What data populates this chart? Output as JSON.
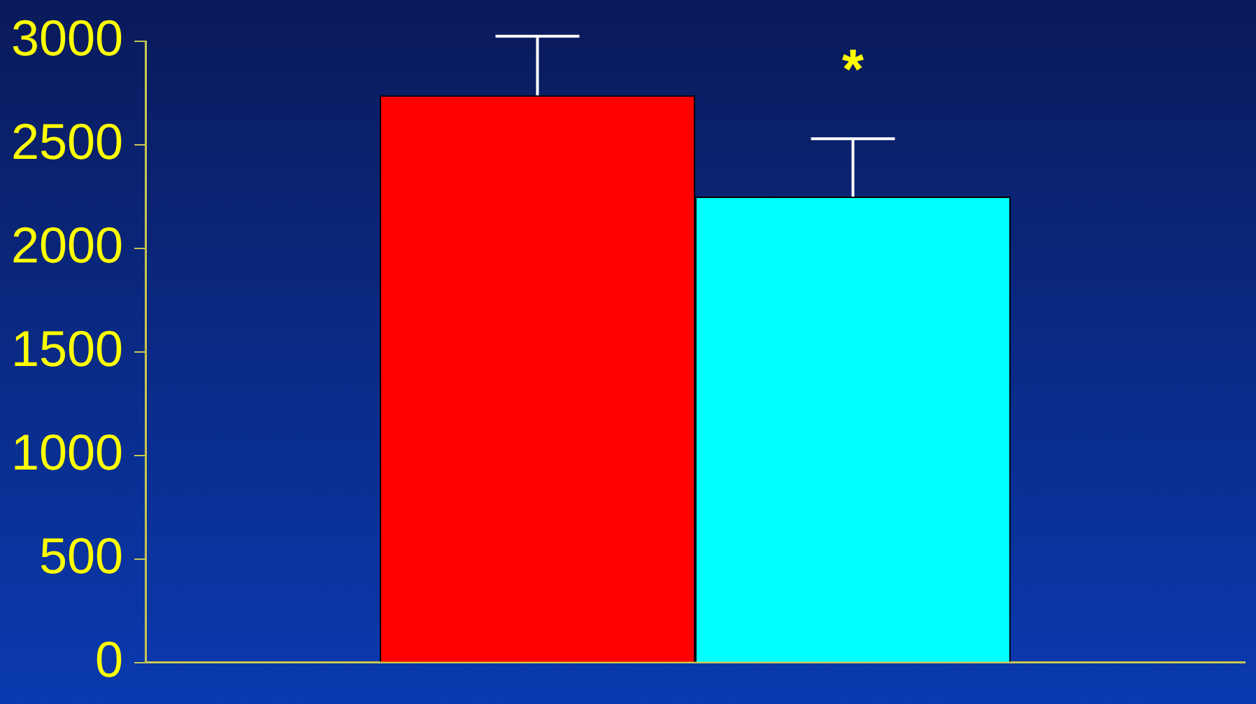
{
  "chart_data": {
    "type": "bar",
    "categories": [
      null
    ],
    "series": [
      {
        "color": "#ff0000",
        "values": [
          2740
        ],
        "errors": [
          285
        ]
      },
      {
        "color": "#00ffff",
        "values": [
          2250
        ],
        "errors": [
          280
        ]
      }
    ],
    "ylim": [
      0,
      3000
    ],
    "yticks": [
      0,
      500,
      1000,
      1500,
      2000,
      2500,
      3000
    ],
    "grid": false,
    "legend": false,
    "annotations": [
      "*"
    ]
  }
}
